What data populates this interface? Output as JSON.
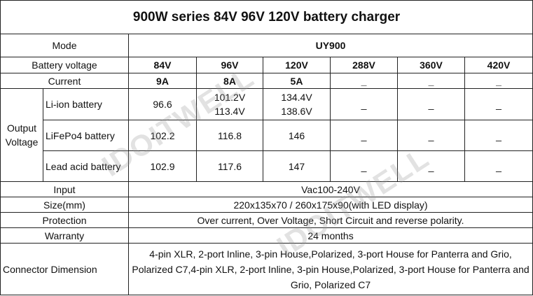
{
  "title": "900W series 84V 96V 120V battery charger",
  "watermark": [
    "IDOITWELL",
    "IDOITWELL"
  ],
  "table": {
    "mode": {
      "label": "Mode",
      "value": "UY900"
    },
    "battery_voltage": {
      "label": "Battery voltage",
      "values": [
        "84V",
        "96V",
        "120V",
        "288V",
        "360V",
        "420V"
      ]
    },
    "current": {
      "label": "Current",
      "values": [
        "9A",
        "8A",
        "5A",
        "_",
        "_",
        "_"
      ]
    },
    "output_voltage": {
      "label": "Output Voltage",
      "rows": [
        {
          "label": "Li-ion battery",
          "values": [
            [
              "96.6"
            ],
            [
              "101.2V",
              "113.4V"
            ],
            [
              "134.4V",
              "138.6V"
            ],
            [
              "_"
            ],
            [
              "_"
            ],
            [
              "_"
            ]
          ]
        },
        {
          "label": "LiFePo4 battery",
          "values": [
            [
              "102.2"
            ],
            [
              "116.8"
            ],
            [
              "146"
            ],
            [
              "_"
            ],
            [
              "_"
            ],
            [
              "_"
            ]
          ]
        },
        {
          "label": "Lead acid battery",
          "values": [
            [
              "102.9"
            ],
            [
              "117.6"
            ],
            [
              "147"
            ],
            [
              "_"
            ],
            [
              "_"
            ],
            [
              "_"
            ]
          ]
        }
      ]
    },
    "input": {
      "label": "Input",
      "value": "Vac100-240V"
    },
    "size": {
      "label": "Size(mm)",
      "value": "220x135x70 / 260x175x90(with LED display)"
    },
    "protection": {
      "label": "Protection",
      "value": "Over current, Over Voltage, Short Circuit and reverse polarity."
    },
    "warranty": {
      "label": "Warranty",
      "value": "24 months"
    },
    "connector": {
      "label": "Connector Dimension",
      "value": "4-pin XLR, 2-port Inline, 3-pin House,Polarized, 3-port House for Panterra and Grio, Polarized C7,4-pin XLR, 2-port Inline, 3-pin House,Polarized, 3-port House for Panterra and Grio, Polarized C7"
    }
  }
}
